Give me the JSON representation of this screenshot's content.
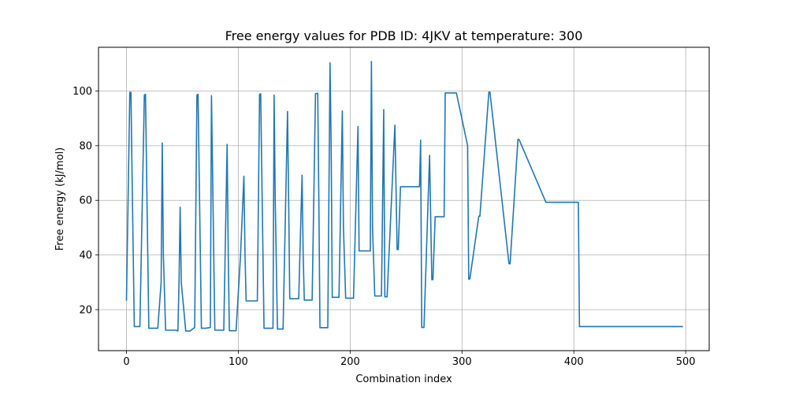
{
  "chart_data": {
    "type": "line",
    "title": "Free energy values for PDB ID: 4JKV at temperature: 300",
    "xlabel": "Combination index",
    "ylabel": "Free energy (kJ/mol)",
    "xlim": [
      -25,
      521
    ],
    "ylim": [
      5,
      116
    ],
    "xticks": [
      0,
      100,
      200,
      300,
      400,
      500
    ],
    "yticks": [
      20,
      40,
      60,
      80,
      100
    ],
    "grid": true,
    "series": [
      {
        "color": "#1f77b4",
        "x": [
          0,
          3,
          4,
          5,
          7,
          12,
          16,
          17,
          18,
          20,
          24,
          28,
          31,
          32,
          33,
          35,
          40,
          44,
          46,
          47,
          48,
          49,
          53,
          57,
          61,
          63,
          64,
          65,
          67,
          71,
          75,
          76,
          77,
          79,
          83,
          87,
          90,
          91,
          92,
          94,
          98,
          102,
          105,
          106,
          107,
          109,
          114,
          117,
          119,
          120,
          121,
          123,
          127,
          131,
          132,
          133,
          135,
          140,
          144,
          145,
          146,
          148,
          154,
          157,
          158,
          159,
          161,
          166,
          169,
          171,
          172,
          173,
          175,
          180,
          182,
          183,
          184,
          186,
          190,
          193,
          194,
          196,
          203,
          207,
          208,
          210,
          218,
          219,
          220,
          222,
          228,
          230,
          231,
          233,
          240,
          242,
          243,
          245,
          252,
          262,
          263,
          264,
          266,
          271,
          273,
          274,
          276,
          284,
          285,
          293,
          295,
          305,
          306,
          307,
          315,
          316,
          324,
          325,
          342,
          343,
          350,
          351,
          375,
          376,
          404,
          405,
          497
        ],
        "y": [
          23.5,
          99.5,
          99.5,
          70,
          13.8,
          13.8,
          98.5,
          98.8,
          70,
          13.2,
          13.2,
          13.2,
          30,
          81,
          40,
          12.5,
          12.5,
          12.5,
          12.2,
          30,
          57.5,
          30,
          12.2,
          12.2,
          13.5,
          98.5,
          98.8,
          70,
          13.2,
          13.2,
          13.5,
          98.3,
          70,
          12.5,
          12.5,
          12.5,
          80.5,
          40,
          12.3,
          12.3,
          12.3,
          40,
          68.8,
          40,
          23.2,
          23.2,
          23.2,
          23.2,
          98.8,
          99,
          70,
          13.2,
          13.2,
          13.2,
          98.5,
          60,
          12.9,
          12.9,
          92.5,
          60,
          24,
          24,
          24,
          69.2,
          40,
          23.5,
          23.5,
          23.5,
          99,
          99.2,
          60,
          13.4,
          13.4,
          13.4,
          110.3,
          80,
          24.5,
          24.5,
          24.5,
          92.7,
          50,
          24.2,
          24.2,
          87,
          41.5,
          41.5,
          41.5,
          110.8,
          50,
          25,
          25,
          93.2,
          24.7,
          24.7,
          87.5,
          42,
          42,
          65,
          65,
          65,
          82,
          13.5,
          13.5,
          76.5,
          31,
          31,
          54,
          54,
          99.3,
          99.3,
          99.3,
          80,
          31.2,
          31.2,
          54.2,
          54.2,
          99.6,
          99.6,
          36.8,
          36.8,
          82.3,
          82.3,
          59.3,
          59.3,
          59.3,
          13.8,
          13.8
        ]
      }
    ]
  }
}
